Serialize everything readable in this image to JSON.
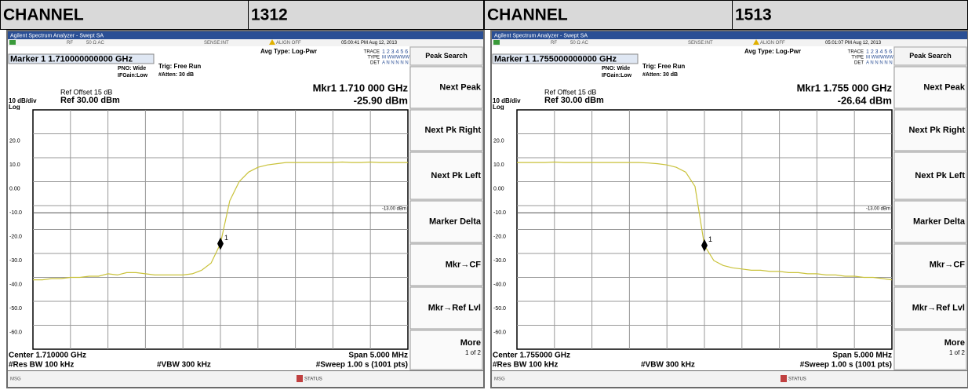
{
  "header": [
    {
      "label": "CHANNEL",
      "value": "1312"
    },
    {
      "label": "CHANNEL",
      "value": "1513"
    }
  ],
  "panels": [
    {
      "title_bar": "Agilent Spectrum Analyzer - Swept SA",
      "rf": "RF",
      "ohm": "50 Ω  AC",
      "sense": "SENSE:INT",
      "align": "ALIGN OFF",
      "time": "05:00:41 PM Aug 12, 2013",
      "trace": "TRACE",
      "trace_nums": "1 2 3 4 5 6",
      "type": "TYPE",
      "type_val": "M WWWWW",
      "det": "DET",
      "det_val": "A N N N N N",
      "marker_title": "Marker 1 1.710000000000 GHz",
      "pno": "PNO: Wide",
      "ifgain": "IFGain:Low",
      "trig": "Trig: Free Run",
      "atten": "#Atten: 30 dB",
      "avg": "Avg Type: Log-Pwr",
      "ref_offset": "Ref Offset 15 dB",
      "scale": "10 dB/div",
      "ref": "Ref 30.00 dBm",
      "log": "Log",
      "mkr_freq": "Mkr1 1.710 000 GHz",
      "mkr_amp": "-25.90 dBm",
      "ylim": [
        -70,
        30
      ],
      "yticks": [
        {
          "value": 20,
          "label": "20.0"
        },
        {
          "value": 10,
          "label": "10.0"
        },
        {
          "value": 0,
          "label": "0.00"
        },
        {
          "value": -10,
          "label": "-10.0"
        },
        {
          "value": -20,
          "label": "-20.0"
        },
        {
          "value": -30,
          "label": "-30.0"
        },
        {
          "value": -40,
          "label": "-40.0"
        },
        {
          "value": -50,
          "label": "-50.0"
        },
        {
          "value": -60,
          "label": "-60.0"
        }
      ],
      "display_line": {
        "value": -13,
        "label": "-13.00 dBm"
      },
      "marker_label": "1",
      "marker_index": 20,
      "trace_values": [
        -41,
        -41,
        -40.5,
        -40.5,
        -40,
        -40,
        -39.5,
        -39.5,
        -38.5,
        -39,
        -38,
        -38,
        -38.5,
        -39,
        -39,
        -39,
        -39,
        -38.5,
        -37,
        -34,
        -25.9,
        -8,
        0,
        4,
        6,
        7,
        7.5,
        8,
        8,
        8,
        8,
        8,
        8,
        8.2,
        8,
        8,
        8.2,
        8,
        8,
        8,
        8
      ],
      "center": "Center 1.710000 GHz",
      "span": "Span 5.000 MHz",
      "res_bw": "#Res BW 100 kHz",
      "vbw": "#VBW 300 kHz",
      "sweep": "#Sweep  1.00 s (1001 pts)",
      "softkeys": [
        "Peak Search",
        "Next Peak",
        "Next Pk Right",
        "Next Pk Left",
        "Marker Delta",
        "Mkr→CF",
        "Mkr→Ref Lvl",
        "More"
      ],
      "more_page": "1 of 2",
      "msg": "MSG",
      "status_btn": "STATUS"
    },
    {
      "title_bar": "Agilent Spectrum Analyzer - Swept SA",
      "rf": "RF",
      "ohm": "50 Ω  AC",
      "sense": "SENSE:INT",
      "align": "ALIGN OFF",
      "time": "05:01:07 PM Aug 12, 2013",
      "trace": "TRACE",
      "trace_nums": "1 2 3 4 5 6",
      "type": "TYPE",
      "type_val": "M WWWWW",
      "det": "DET",
      "det_val": "A N N N N N",
      "marker_title": "Marker 1 1.755000000000 GHz",
      "pno": "PNO: Wide",
      "ifgain": "IFGain:Low",
      "trig": "Trig: Free Run",
      "atten": "#Atten: 30 dB",
      "avg": "Avg Type: Log-Pwr",
      "ref_offset": "Ref Offset 15 dB",
      "scale": "10 dB/div",
      "ref": "Ref 30.00 dBm",
      "log": "Log",
      "mkr_freq": "Mkr1 1.755 000 GHz",
      "mkr_amp": "-26.64 dBm",
      "ylim": [
        -70,
        30
      ],
      "yticks": [
        {
          "value": 20,
          "label": "20.0"
        },
        {
          "value": 10,
          "label": "10.0"
        },
        {
          "value": 0,
          "label": "0.00"
        },
        {
          "value": -10,
          "label": "-10.0"
        },
        {
          "value": -20,
          "label": "-20.0"
        },
        {
          "value": -30,
          "label": "-30.0"
        },
        {
          "value": -40,
          "label": "-40.0"
        },
        {
          "value": -50,
          "label": "-50.0"
        },
        {
          "value": -60,
          "label": "-60.0"
        }
      ],
      "display_line": {
        "value": -13,
        "label": "-13.00 dBm"
      },
      "marker_label": "1",
      "marker_index": 20,
      "trace_values": [
        8,
        8,
        8,
        8,
        8.2,
        8,
        8,
        8,
        8,
        8,
        8,
        8,
        8,
        8,
        7.8,
        7.5,
        7,
        6,
        4,
        -2,
        -26.64,
        -33,
        -35,
        -36,
        -36.5,
        -37,
        -37,
        -37.5,
        -37.5,
        -38,
        -38,
        -38.5,
        -38.5,
        -39,
        -39,
        -39.5,
        -39.5,
        -40,
        -40,
        -40.5,
        -41
      ],
      "center": "Center 1.755000 GHz",
      "span": "Span 5.000 MHz",
      "res_bw": "#Res BW 100 kHz",
      "vbw": "#VBW 300 kHz",
      "sweep": "#Sweep  1.00 s (1001 pts)",
      "softkeys": [
        "Peak Search",
        "Next Peak",
        "Next Pk Right",
        "Next Pk Left",
        "Marker Delta",
        "Mkr→CF",
        "Mkr→Ref Lvl",
        "More"
      ],
      "more_page": "1 of 2",
      "msg": "MSG",
      "status_btn": "STATUS"
    }
  ]
}
